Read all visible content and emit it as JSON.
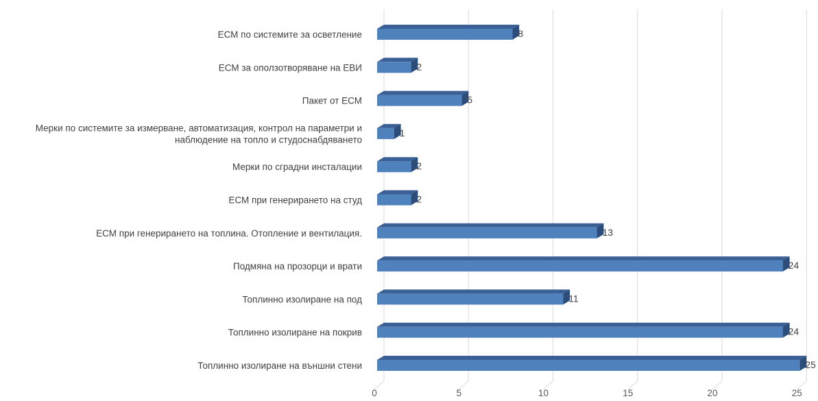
{
  "chart_data": {
    "type": "bar",
    "orientation": "horizontal",
    "style": "3d",
    "categories": [
      "ЕСМ по системите за осветление",
      "ЕСМ за оползотворяване на ЕВИ",
      "Пакет от ЕСМ",
      "Мерки по системите за измерване, автоматизация, контрол на параметри и наблюдение на топло и студоснабдяването",
      "Мерки по сградни инсталации",
      "ЕСМ при генерирането на студ",
      "ЕСМ при генерирането на топлина. Отопление и вентилация.",
      "Подмяна на прозорци и врати",
      "Топлинно изолиране на под",
      "Топлинно изолиране на покрив",
      "Топлинно изолиране на външни стени"
    ],
    "category_lines": [
      [
        "ЕСМ по системите за осветление"
      ],
      [
        "ЕСМ за оползотворяване на ЕВИ"
      ],
      [
        "Пакет от ЕСМ"
      ],
      [
        "Мерки по системите за измерване, автоматизация, контрол на параметри и",
        "наблюдение на топло и студоснабдяването"
      ],
      [
        "Мерки по сградни инсталации"
      ],
      [
        "ЕСМ при генерирането на студ"
      ],
      [
        "ЕСМ при генерирането на топлина. Отопление и вентилация."
      ],
      [
        "Подмяна на прозорци и врати"
      ],
      [
        "Топлинно изолиране на под"
      ],
      [
        "Топлинно изолиране на покрив"
      ],
      [
        "Топлинно изолиране на външни стени"
      ]
    ],
    "values": [
      8,
      2,
      5,
      1,
      2,
      2,
      13,
      24,
      11,
      24,
      25
    ],
    "xlim": [
      0,
      25
    ],
    "xticks": [
      0,
      5,
      10,
      15,
      20,
      25
    ],
    "grid": "vertical",
    "legend": "none",
    "title": "",
    "xlabel": "",
    "ylabel": "",
    "colors": {
      "bar_front": "#4f81bd",
      "bar_top": "#3a6095",
      "bar_side": "#2c4d7a",
      "grid": "#d9d9d9",
      "text": "#404040",
      "tick_text": "#595959"
    }
  }
}
